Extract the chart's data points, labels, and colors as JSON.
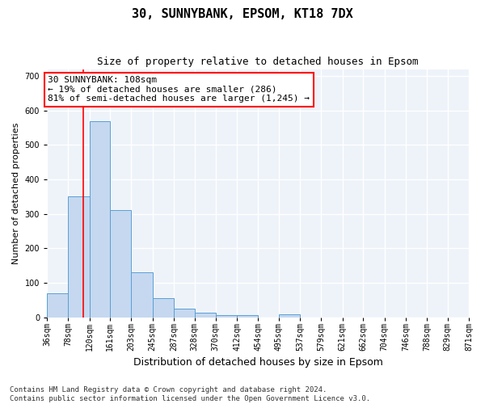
{
  "title1": "30, SUNNYBANK, EPSOM, KT18 7DX",
  "title2": "Size of property relative to detached houses in Epsom",
  "xlabel": "Distribution of detached houses by size in Epsom",
  "ylabel": "Number of detached properties",
  "bar_edges": [
    36,
    78,
    120,
    161,
    203,
    245,
    287,
    328,
    370,
    412,
    454,
    495,
    537,
    579,
    621,
    662,
    704,
    746,
    788,
    829,
    871
  ],
  "bar_heights": [
    70,
    350,
    568,
    312,
    130,
    57,
    25,
    13,
    7,
    7,
    0,
    10,
    0,
    0,
    0,
    0,
    0,
    0,
    0,
    0
  ],
  "bar_color": "#c5d8f0",
  "bar_edge_color": "#5a9fd4",
  "property_line_x": 108,
  "annotation_line1": "30 SUNNYBANK: 108sqm",
  "annotation_line2": "← 19% of detached houses are smaller (286)",
  "annotation_line3": "81% of semi-detached houses are larger (1,245) →",
  "annotation_box_color": "white",
  "annotation_box_edge_color": "red",
  "vline_color": "red",
  "ylim": [
    0,
    720
  ],
  "yticks": [
    0,
    100,
    200,
    300,
    400,
    500,
    600,
    700
  ],
  "background_color": "#eef3fa",
  "grid_color": "white",
  "footer_line1": "Contains HM Land Registry data © Crown copyright and database right 2024.",
  "footer_line2": "Contains public sector information licensed under the Open Government Licence v3.0.",
  "title1_fontsize": 11,
  "title2_fontsize": 9,
  "xlabel_fontsize": 9,
  "ylabel_fontsize": 8,
  "tick_fontsize": 7,
  "annotation_fontsize": 8,
  "footer_fontsize": 6.5
}
